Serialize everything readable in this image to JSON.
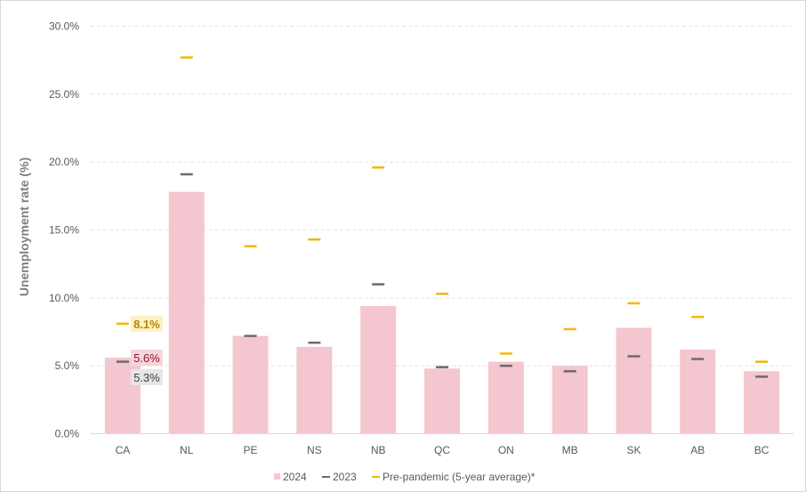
{
  "chart_data": {
    "type": "bar",
    "title": "",
    "ylabel": "Unemployment rate (%)",
    "xlabel": "",
    "ylim": [
      0,
      30
    ],
    "yticks": [
      0,
      5,
      10,
      15,
      20,
      25,
      30
    ],
    "ytick_labels": [
      "0.0%",
      "5.0%",
      "10.0%",
      "15.0%",
      "20.0%",
      "25.0%",
      "30.0%"
    ],
    "grid": true,
    "legend_position": "bottom",
    "categories": [
      "CA",
      "NL",
      "PE",
      "NS",
      "NB",
      "QC",
      "ON",
      "MB",
      "SK",
      "AB",
      "BC"
    ],
    "series": [
      {
        "name": "2024",
        "kind": "bar",
        "color": "#f4c6cf",
        "values": [
          5.6,
          17.8,
          7.2,
          6.4,
          9.4,
          4.8,
          5.3,
          5.0,
          7.8,
          6.2,
          4.6
        ]
      },
      {
        "name": "2023",
        "kind": "marker",
        "color": "#6b6b6b",
        "values": [
          5.3,
          19.1,
          7.2,
          6.7,
          11.0,
          4.9,
          5.0,
          4.6,
          5.7,
          5.5,
          4.2
        ]
      },
      {
        "name": "Pre-pandemic (5-year average)*",
        "kind": "marker",
        "color": "#f2b705",
        "values": [
          8.1,
          27.7,
          13.8,
          14.3,
          19.6,
          10.3,
          5.9,
          7.7,
          9.6,
          8.6,
          5.3
        ]
      }
    ],
    "data_labels": [
      {
        "text": "8.1%",
        "color": "#b38600",
        "bg": "#fdf0c4"
      },
      {
        "text": "5.6%",
        "color": "#8b1a2b",
        "bg": "#f6d5dc"
      },
      {
        "text": "5.3%",
        "color": "#404040",
        "bg": "#e6e6e6"
      }
    ]
  }
}
